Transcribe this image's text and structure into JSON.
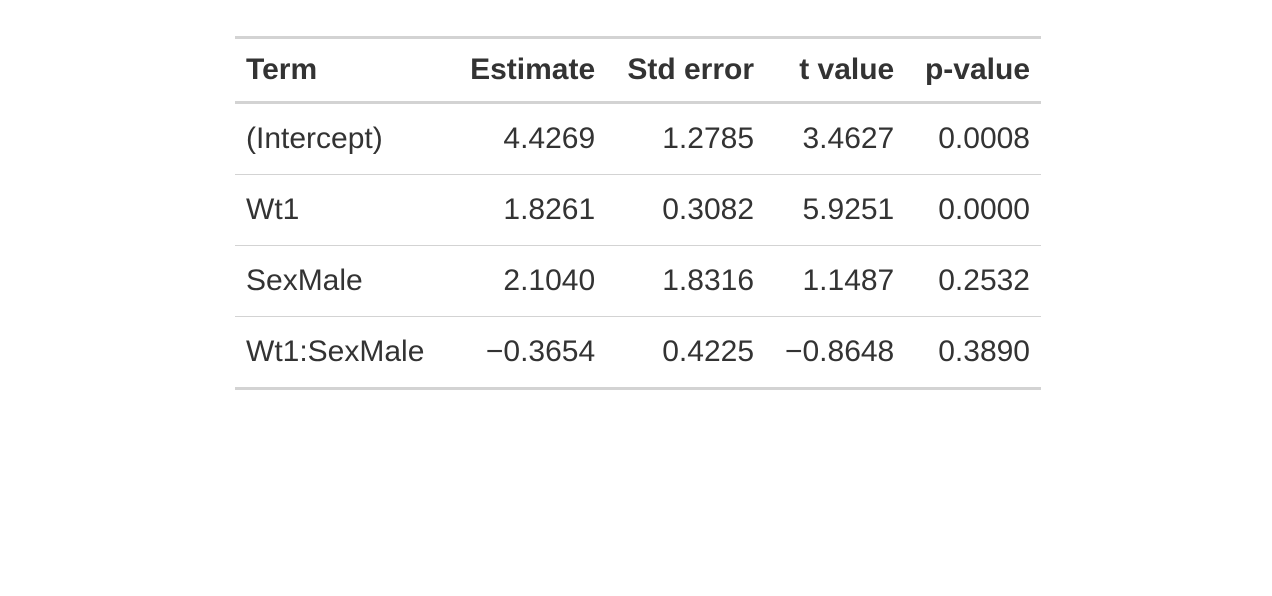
{
  "table": {
    "columns": [
      "Term",
      "Estimate",
      "Std error",
      "t value",
      "p-value"
    ],
    "rows": [
      [
        "(Intercept)",
        "4.4269",
        "1.2785",
        "3.4627",
        "0.0008"
      ],
      [
        "Wt1",
        "1.8261",
        "0.3082",
        "5.9251",
        "0.0000"
      ],
      [
        "SexMale",
        "2.1040",
        "1.8316",
        "1.1487",
        "0.2532"
      ],
      [
        "Wt1:SexMale",
        "−0.3654",
        "0.4225",
        "−0.8648",
        "0.3890"
      ]
    ]
  }
}
